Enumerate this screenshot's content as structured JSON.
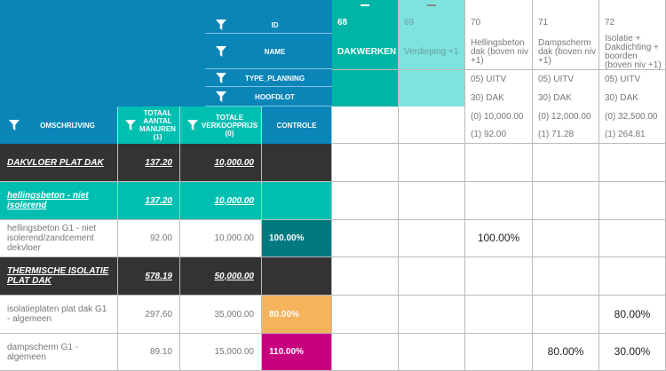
{
  "filters": {
    "id": "ID",
    "name": "NAME",
    "type_planning": "TYPE_PLANNING",
    "hoofdlot": "HOOFDLOT"
  },
  "columns": {
    "omschrijving": "OMSCHRIJVING",
    "totaal": "TOTAAL AANTAL MANUREN (1)",
    "verkoop": "TOTALE VERKOOPPRIJS (0)",
    "controle": "CONTROLE"
  },
  "planning_columns": [
    {
      "id": "68",
      "name": "DAKWERKEN",
      "type": "",
      "hoofdlot": "",
      "v0": "",
      "v1": ""
    },
    {
      "id": "69",
      "name": "Verdieping +1",
      "type": "",
      "hoofdlot": "",
      "v0": "",
      "v1": ""
    },
    {
      "id": "70",
      "name": "Hellingsbeton dak (boven niv +1)",
      "type": "05) UITV",
      "hoofdlot": "30) DAK",
      "v0": "(0) 10,000.00",
      "v1": "(1) 92.00"
    },
    {
      "id": "71",
      "name": "Dampscherm dak (boven niv +1)",
      "type": "05) UITV",
      "hoofdlot": "30) DAK",
      "v0": "(0) 12,000.00",
      "v1": "(1) 71.28"
    },
    {
      "id": "72",
      "name": "Isolatie + Dakdichting + boorden (boven niv +1)",
      "type": "05) UITV",
      "hoofdlot": "30) DAK",
      "v0": "(0) 32,500.00",
      "v1": "(1) 264.81"
    }
  ],
  "rows": [
    {
      "omschrijving": "DAKVLOER PLAT DAK",
      "manuren": "137.20",
      "verkoop": "10,000.00",
      "controle": "",
      "style": "dark",
      "cells": [
        "",
        "",
        "",
        "",
        ""
      ]
    },
    {
      "omschrijving": "hellingsbeton - niet isolerend",
      "manuren": "137.20",
      "verkoop": "10,000.00",
      "controle": "",
      "style": "teal",
      "cells": [
        "",
        "",
        "",
        "",
        ""
      ]
    },
    {
      "omschrijving": "hellingsbeton G1 - niet isolerend/zandcement dekvloer",
      "manuren": "92.00",
      "verkoop": "10,000.00",
      "controle": "100.00%",
      "style": "plain",
      "cells": [
        "",
        "",
        "100.00%",
        "",
        ""
      ]
    },
    {
      "omschrijving": "THERMISCHE ISOLATIE PLAT DAK",
      "manuren": "578.19",
      "verkoop": "50,000.00",
      "controle": "",
      "style": "dark",
      "cells": [
        "",
        "",
        "",
        "",
        ""
      ]
    },
    {
      "omschrijving": "isolatieplaten plat dak G1 - algemeen",
      "manuren": "297.60",
      "verkoop": "35,000.00",
      "controle": "80.00%",
      "style": "plain",
      "cells": [
        "",
        "",
        "",
        "",
        "80.00%"
      ]
    },
    {
      "omschrijving": "dampscherm G1 - algemeen",
      "manuren": "89.10",
      "verkoop": "15,000.00",
      "controle": "110.00%",
      "style": "plain",
      "cells": [
        "",
        "",
        "",
        "80.00%",
        "30.00%"
      ]
    }
  ],
  "colors": {
    "header": "#0a85b8",
    "teal": "#00bfb0",
    "light_teal": "#7ee3df",
    "dark": "#333333",
    "ctl_ok": "#007a7f",
    "ctl_low": "#f5b35c",
    "ctl_high": "#c8007f"
  }
}
